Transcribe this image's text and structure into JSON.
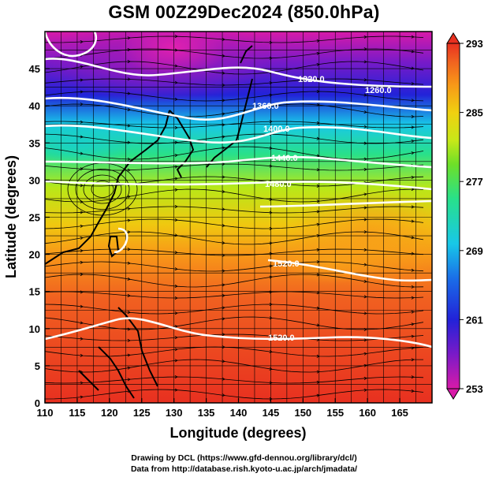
{
  "title": "GSM 00Z29Dec2024 (850.0hPa)",
  "map": {
    "xlabel": "Longitude (degrees)",
    "ylabel": "Latitude  (degrees)",
    "lon_range": [
      110,
      170
    ],
    "lat_range": [
      0,
      50
    ],
    "lon_ticks": [
      "110",
      "115",
      "120",
      "125",
      "130",
      "135",
      "140",
      "145",
      "150",
      "155",
      "160",
      "165"
    ],
    "lat_ticks": [
      "0",
      "5",
      "10",
      "15",
      "20",
      "25",
      "30",
      "35",
      "40",
      "45"
    ],
    "grid": true,
    "contour_labels": [
      "1320.0",
      "1260.0",
      "1360.0",
      "1400.0",
      "1440.0",
      "1480.0",
      "1520.0",
      "1520.0"
    ]
  },
  "colorbar": {
    "ticks": [
      "293",
      "285",
      "277",
      "269",
      "261",
      "253"
    ],
    "min": 253,
    "max": 293,
    "colors": [
      "#d81aa8",
      "#7a1ac8",
      "#2222d8",
      "#1a6ee8",
      "#18c8e8",
      "#28e08a",
      "#6ee028",
      "#c8e818",
      "#f0d010",
      "#f89818",
      "#f06020",
      "#e83020"
    ]
  },
  "credits": {
    "line1": "Drawing by DCL (https://www.gfd-dennou.org/library/dcl/)",
    "line2": "Data from http://database.rish.kyoto-u.ac.jp/arch/jmadata/"
  }
}
